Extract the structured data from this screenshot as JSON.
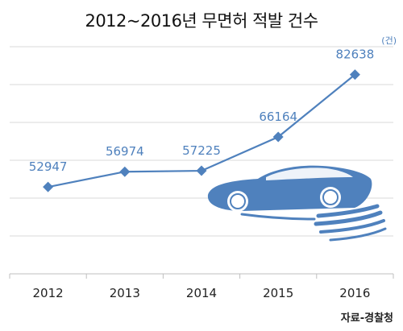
{
  "title": "2012~2016년 무면허 적발 건수",
  "unit": "(건)",
  "source": "자료-경찰청",
  "chart_data": {
    "type": "line",
    "title": "2012~2016년 무면허 적발 건수",
    "categories": [
      "2012",
      "2013",
      "2014",
      "2015",
      "2016"
    ],
    "series": [
      {
        "values": [
          52947,
          56974,
          57225,
          66164,
          82638
        ]
      }
    ],
    "data_labels": [
      "52947",
      "56974",
      "57225",
      "66164",
      "82638"
    ],
    "unit": "(건)",
    "xlabel": "",
    "ylabel": "",
    "ylim": [
      30000,
      90000
    ],
    "grid": true,
    "marker": "diamond",
    "color": "#4f81bd",
    "decoration": "car-icon"
  }
}
